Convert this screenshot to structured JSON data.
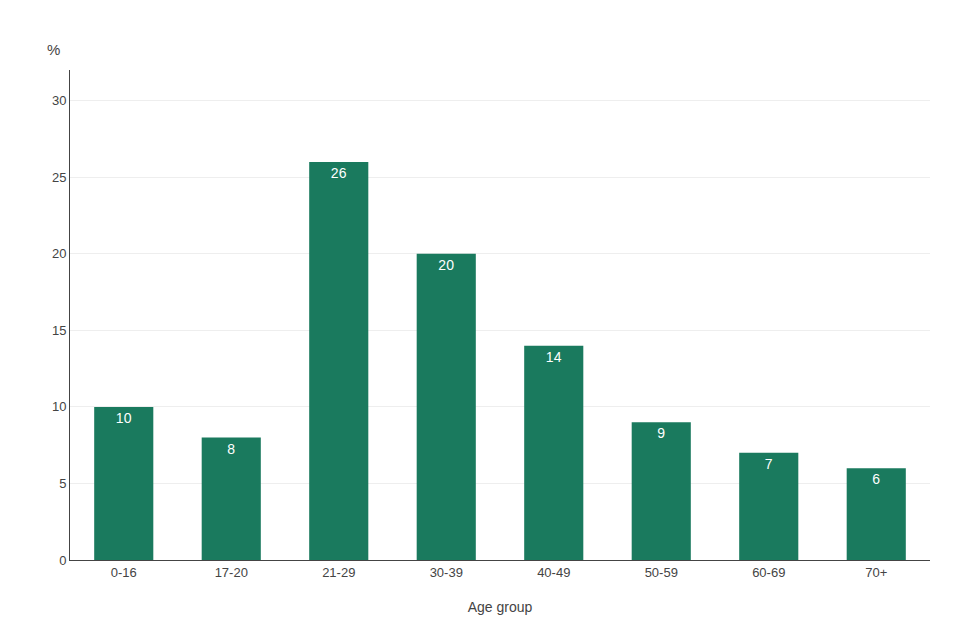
{
  "chart_data": {
    "type": "bar",
    "xlabel": "Age group",
    "ylabel": "%",
    "categories": [
      "0-16",
      "17-20",
      "21-29",
      "30-39",
      "40-49",
      "50-59",
      "60-69",
      "70+"
    ],
    "values": [
      10,
      8,
      26,
      20,
      14,
      9,
      7,
      6
    ],
    "color": "#1a7a5e",
    "ylim": [
      0,
      32
    ],
    "yticks": [
      0,
      5,
      10,
      15,
      20,
      25,
      30
    ],
    "grid": true,
    "data_labels": true
  }
}
